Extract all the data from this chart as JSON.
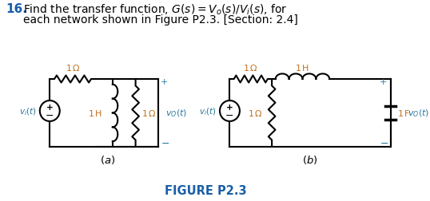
{
  "title_number": "16.",
  "title_text1": "Find the transfer function, $G(s) = V_o(s)/V_i(s)$, for",
  "title_text2": "each network shown in Figure P2.3. [Section: 2.4]",
  "figure_label": "FIGURE P2.3",
  "bg_color": "#ffffff",
  "black": "#000000",
  "teal": "#2878a0",
  "orange": "#c07020"
}
